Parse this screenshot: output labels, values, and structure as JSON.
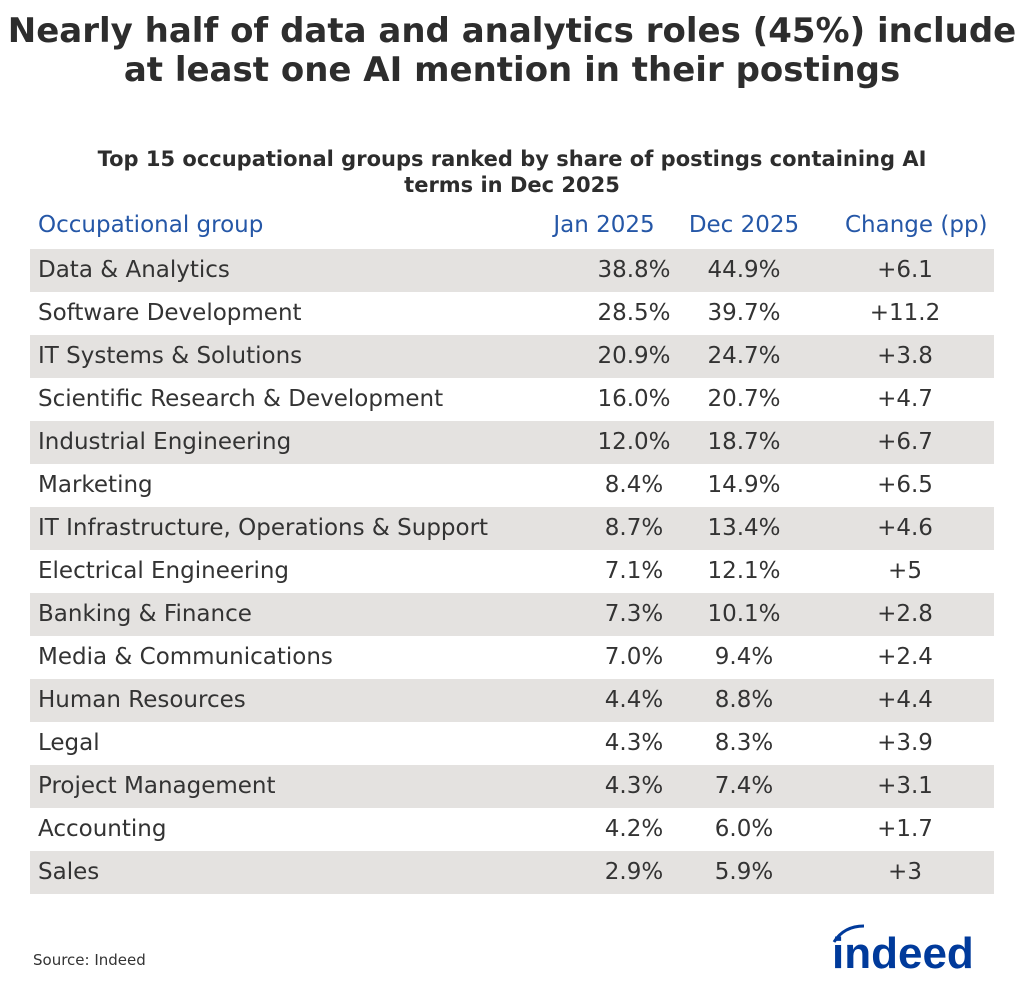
{
  "chart_data": {
    "type": "table",
    "title": "Nearly half of data and analytics roles (45%) include at least one AI mention in their postings",
    "subtitle": "Top 15 occupational groups ranked by share of postings containing AI terms in Dec 2025",
    "columns": [
      "Occupational group",
      "Jan 2025",
      "Dec 2025",
      "Change (pp)"
    ],
    "rows": [
      [
        "Data & Analytics",
        "38.8%",
        "44.9%",
        "+6.1"
      ],
      [
        "Software Development",
        "28.5%",
        "39.7%",
        "+11.2"
      ],
      [
        "IT Systems & Solutions",
        "20.9%",
        "24.7%",
        "+3.8"
      ],
      [
        "Scientific Research & Development",
        "16.0%",
        "20.7%",
        "+4.7"
      ],
      [
        "Industrial Engineering",
        "12.0%",
        "18.7%",
        "+6.7"
      ],
      [
        "Marketing",
        "8.4%",
        "14.9%",
        "+6.5"
      ],
      [
        "IT Infrastructure, Operations & Support",
        "8.7%",
        "13.4%",
        "+4.6"
      ],
      [
        "Electrical Engineering",
        "7.1%",
        "12.1%",
        "+5"
      ],
      [
        "Banking & Finance",
        "7.3%",
        "10.1%",
        "+2.8"
      ],
      [
        "Media & Communications",
        "7.0%",
        "9.4%",
        "+2.4"
      ],
      [
        "Human Resources",
        "4.4%",
        "8.8%",
        "+4.4"
      ],
      [
        "Legal",
        "4.3%",
        "8.3%",
        "+3.9"
      ],
      [
        "Project Management",
        "4.3%",
        "7.4%",
        "+3.1"
      ],
      [
        "Accounting",
        "4.2%",
        "6.0%",
        "+1.7"
      ],
      [
        "Sales",
        "2.9%",
        "5.9%",
        "+3"
      ]
    ],
    "header_color": "#2557a7",
    "stripe_color": "#e4e2e0"
  },
  "source": "Source: Indeed",
  "logo": {
    "text": "indeed",
    "color": "#003a9b"
  }
}
